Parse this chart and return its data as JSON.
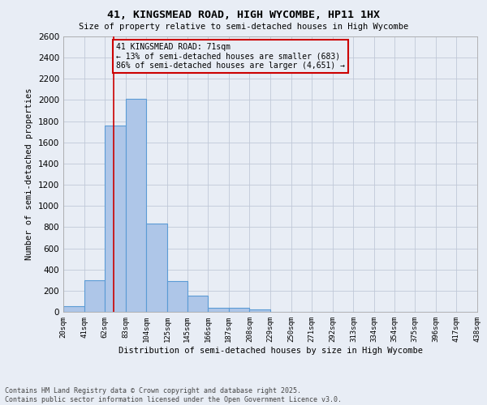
{
  "title_line1": "41, KINGSMEAD ROAD, HIGH WYCOMBE, HP11 1HX",
  "title_line2": "Size of property relative to semi-detached houses in High Wycombe",
  "xlabel": "Distribution of semi-detached houses by size in High Wycombe",
  "ylabel": "Number of semi-detached properties",
  "annotation_title": "41 KINGSMEAD ROAD: 71sqm",
  "annotation_line1": "← 13% of semi-detached houses are smaller (683)",
  "annotation_line2": "86% of semi-detached houses are larger (4,651) →",
  "footer_line1": "Contains HM Land Registry data © Crown copyright and database right 2025.",
  "footer_line2": "Contains public sector information licensed under the Open Government Licence v3.0.",
  "property_size": 71,
  "bins": [
    20,
    41,
    62,
    83,
    104,
    125,
    145,
    166,
    187,
    208,
    229,
    250,
    271,
    292,
    313,
    334,
    354,
    375,
    396,
    417,
    438
  ],
  "bin_labels": [
    "20sqm",
    "41sqm",
    "62sqm",
    "83sqm",
    "104sqm",
    "125sqm",
    "145sqm",
    "166sqm",
    "187sqm",
    "208sqm",
    "229sqm",
    "250sqm",
    "271sqm",
    "292sqm",
    "313sqm",
    "334sqm",
    "354sqm",
    "375sqm",
    "396sqm",
    "417sqm",
    "438sqm"
  ],
  "counts": [
    55,
    300,
    1760,
    2010,
    830,
    290,
    155,
    40,
    35,
    20,
    0,
    0,
    0,
    0,
    0,
    0,
    0,
    0,
    0,
    0
  ],
  "bar_color": "#aec6e8",
  "bar_edge_color": "#5b9bd5",
  "red_line_color": "#cc0000",
  "grid_color": "#c0c8d8",
  "background_color": "#e8edf5",
  "ylim": [
    0,
    2600
  ],
  "yticks": [
    0,
    200,
    400,
    600,
    800,
    1000,
    1200,
    1400,
    1600,
    1800,
    2000,
    2200,
    2400,
    2600
  ]
}
